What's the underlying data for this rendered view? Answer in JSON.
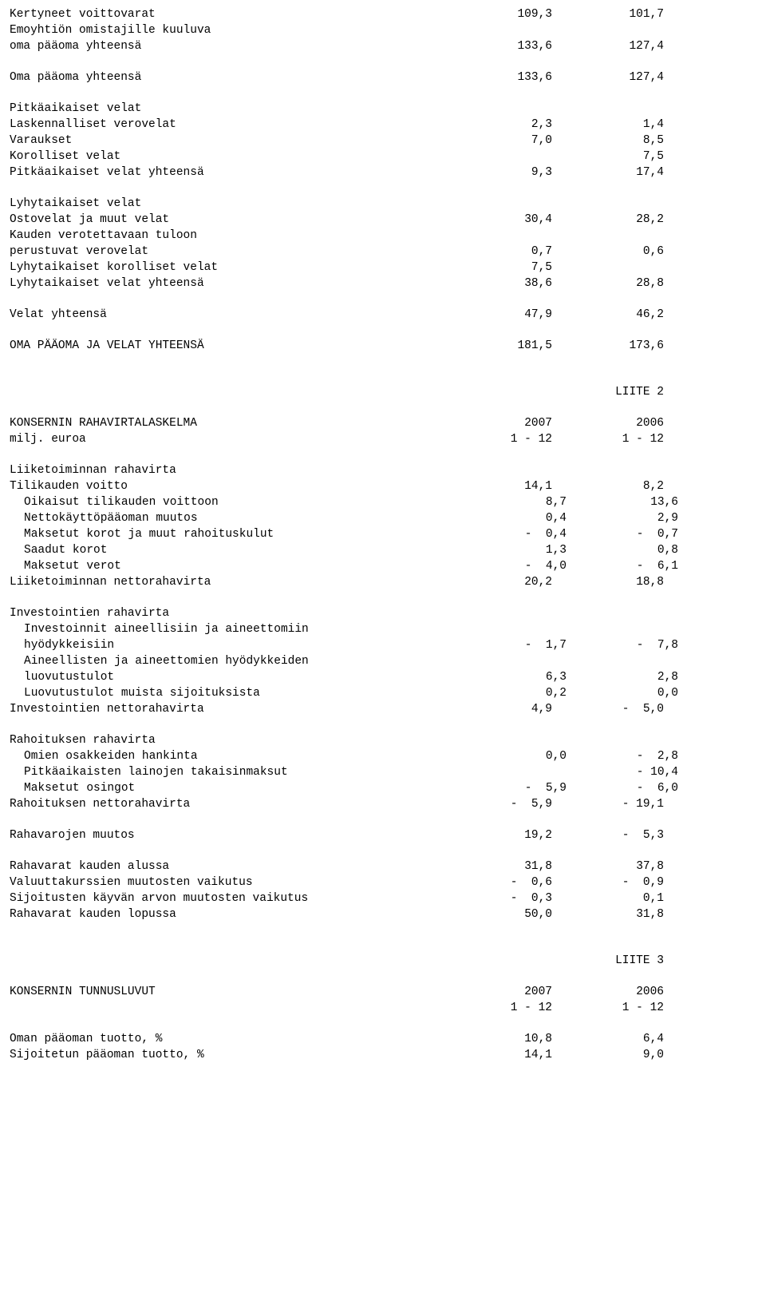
{
  "fmt": {
    "font_family": "Courier New",
    "font_size_pt": 11,
    "text_color": "#000000",
    "bg_color": "#ffffff"
  },
  "s1": {
    "r1": {
      "l": "Kertyneet voittovarat",
      "a": "109,3",
      "b": "101,7"
    },
    "r2": {
      "l": "Emoyhtiön omistajille kuuluva"
    },
    "r3": {
      "l": "oma pääoma yhteensä",
      "a": "133,6",
      "b": "127,4"
    },
    "r4": {
      "l": "Oma pääoma yhteensä",
      "a": "133,6",
      "b": "127,4"
    },
    "r5": {
      "l": "Pitkäaikaiset velat"
    },
    "r6": {
      "l": "Laskennalliset verovelat",
      "a": "2,3",
      "b": "1,4"
    },
    "r7": {
      "l": "Varaukset",
      "a": "7,0",
      "b": "8,5"
    },
    "r8": {
      "l": "Korolliset velat",
      "a": "",
      "b": "7,5"
    },
    "r9": {
      "l": "Pitkäaikaiset velat yhteensä",
      "a": "9,3",
      "b": "17,4"
    },
    "r10": {
      "l": "Lyhytaikaiset velat"
    },
    "r11": {
      "l": "Ostovelat ja muut velat",
      "a": "30,4",
      "b": "28,2"
    },
    "r12": {
      "l": "Kauden verotettavaan tuloon"
    },
    "r13": {
      "l": "perustuvat verovelat",
      "a": "0,7",
      "b": "0,6"
    },
    "r14": {
      "l": "Lyhytaikaiset korolliset velat",
      "a": "7,5",
      "b": ""
    },
    "r15": {
      "l": "Lyhytaikaiset velat yhteensä",
      "a": "38,6",
      "b": "28,8"
    },
    "r16": {
      "l": "Velat yhteensä",
      "a": "47,9",
      "b": "46,2"
    },
    "r17": {
      "l": "OMA PÄÄOMA JA VELAT YHTEENSÄ",
      "a": "181,5",
      "b": "173,6"
    }
  },
  "l2": "LIITE 2",
  "s2": {
    "h1": {
      "l": "KONSERNIN RAHAVIRTALASKELMA",
      "a": "2007",
      "b": "2006"
    },
    "h2": {
      "l": "milj. euroa",
      "a": "1 - 12",
      "b": "1 - 12"
    },
    "r1": {
      "l": "Liiketoiminnan rahavirta"
    },
    "r2": {
      "l": "Tilikauden voitto",
      "a": "14,1",
      "b": "8,2"
    },
    "r3": {
      "l": "Oikaisut tilikauden voittoon",
      "a": "8,7",
      "b": "13,6"
    },
    "r4": {
      "l": "Nettokäyttöpääoman muutos",
      "a": "0,4",
      "b": "2,9"
    },
    "r5": {
      "l": "Maksetut korot ja muut rahoituskulut",
      "a": "-  0,4",
      "b": "-  0,7"
    },
    "r6": {
      "l": "Saadut korot",
      "a": "1,3",
      "b": "0,8"
    },
    "r7": {
      "l": "Maksetut verot",
      "a": "-  4,0",
      "b": "-  6,1"
    },
    "r8": {
      "l": "Liiketoiminnan nettorahavirta",
      "a": "20,2",
      "b": "18,8"
    },
    "r9": {
      "l": "Investointien rahavirta"
    },
    "r10": {
      "l": "Investoinnit aineellisiin ja aineettomiin"
    },
    "r11": {
      "l": "hyödykkeisiin",
      "a": "-  1,7",
      "b": "-  7,8"
    },
    "r12": {
      "l": "Aineellisten ja aineettomien hyödykkeiden"
    },
    "r13": {
      "l": "luovutustulot",
      "a": "6,3",
      "b": "2,8"
    },
    "r14": {
      "l": "Luovutustulot muista sijoituksista",
      "a": "0,2",
      "b": "0,0"
    },
    "r15": {
      "l": "Investointien nettorahavirta",
      "a": "4,9",
      "b": "-  5,0"
    },
    "r16": {
      "l": "Rahoituksen rahavirta"
    },
    "r17": {
      "l": "Omien osakkeiden hankinta",
      "a": "0,0",
      "b": "-  2,8"
    },
    "r18": {
      "l": "Pitkäaikaisten lainojen takaisinmaksut",
      "a": "",
      "b": "- 10,4"
    },
    "r19": {
      "l": "Maksetut osingot",
      "a": "-  5,9",
      "b": "-  6,0"
    },
    "r20": {
      "l": "Rahoituksen nettorahavirta",
      "a": "-  5,9",
      "b": "- 19,1"
    },
    "r21": {
      "l": "Rahavarojen muutos",
      "a": "19,2",
      "b": "-  5,3"
    },
    "r22": {
      "l": "Rahavarat kauden alussa",
      "a": "31,8",
      "b": "37,8"
    },
    "r23": {
      "l": "Valuuttakurssien muutosten vaikutus",
      "a": "-  0,6",
      "b": "-  0,9"
    },
    "r24": {
      "l": "Sijoitusten käyvän arvon muutosten vaikutus",
      "a": "-  0,3",
      "b": "0,1"
    },
    "r25": {
      "l": "Rahavarat kauden lopussa",
      "a": "50,0",
      "b": "31,8"
    }
  },
  "l3": "LIITE 3",
  "s3": {
    "h1": {
      "l": "KONSERNIN TUNNUSLUVUT",
      "a": "2007",
      "b": "2006"
    },
    "h2": {
      "l": "",
      "a": "1 - 12",
      "b": "1 - 12"
    },
    "r1": {
      "l": "Oman pääoman tuotto, %",
      "a": "10,8",
      "b": "6,4"
    },
    "r2": {
      "l": "Sijoitetun pääoman tuotto, %",
      "a": "14,1",
      "b": "9,0"
    }
  }
}
